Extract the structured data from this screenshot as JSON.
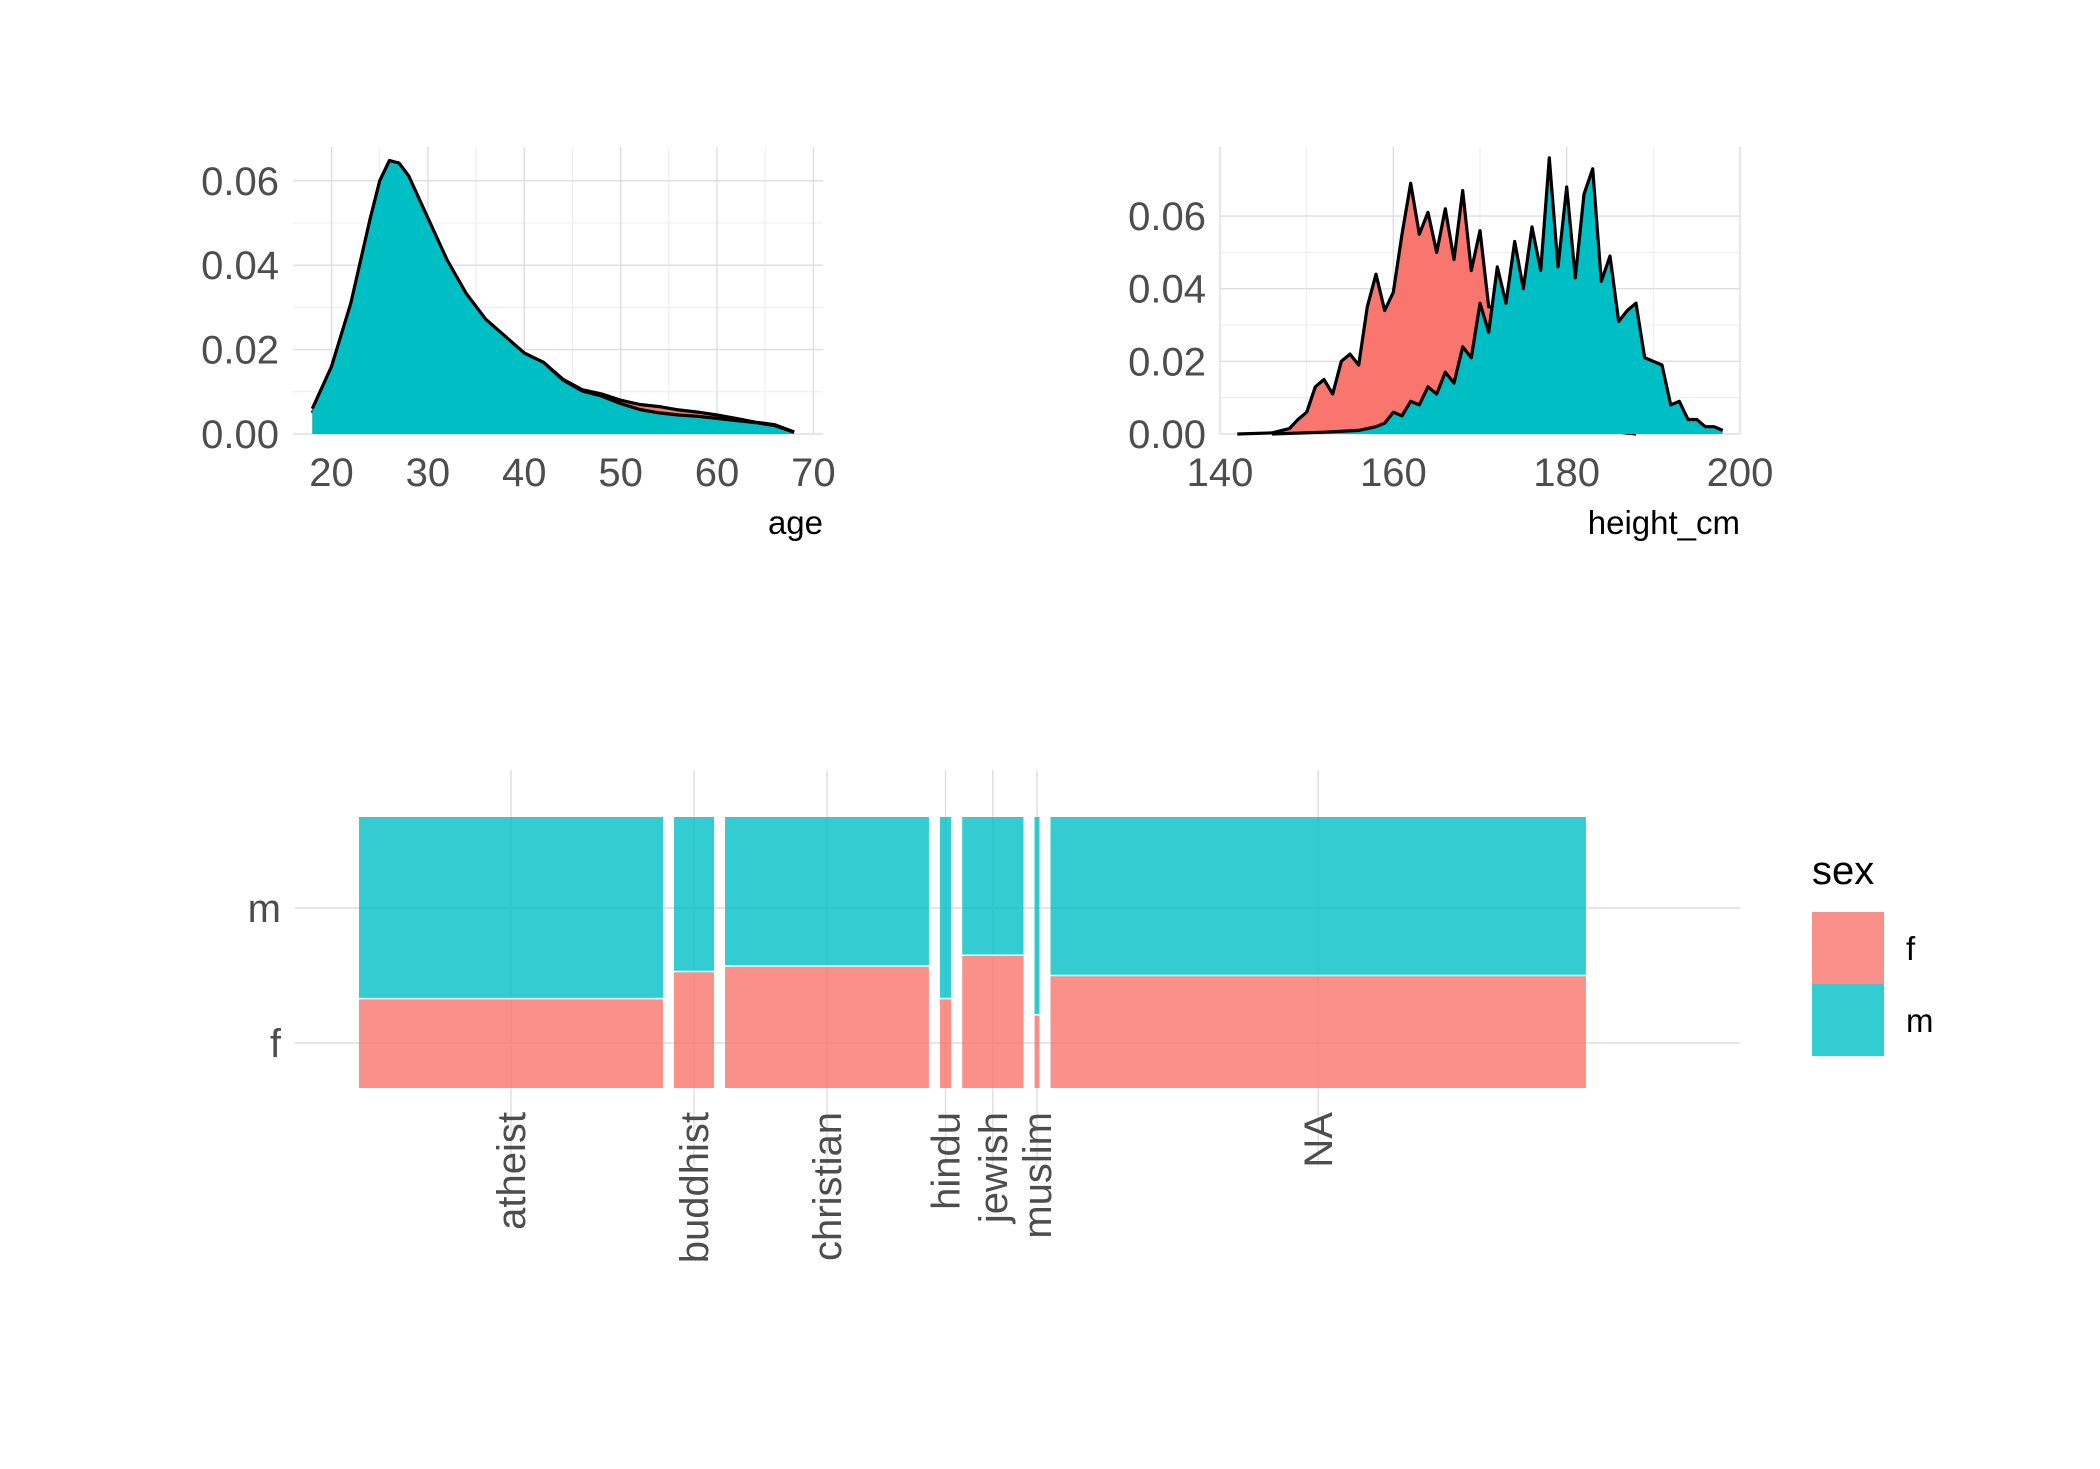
{
  "colors": {
    "f": "#F8766D",
    "m": "#00BFC4"
  },
  "chart_data": [
    {
      "type": "area",
      "chart": "density",
      "xlabel": "age",
      "xlim": [
        16,
        71
      ],
      "ylim": [
        0,
        0.068
      ],
      "x_ticks": [
        20,
        30,
        40,
        50,
        60,
        70
      ],
      "y_ticks": [
        0.0,
        0.02,
        0.04,
        0.06
      ],
      "x_tick_labels": [
        "20",
        "30",
        "40",
        "50",
        "60",
        "70"
      ],
      "y_tick_labels": [
        "0.00",
        "0.02",
        "0.04",
        "0.06"
      ],
      "series": [
        {
          "name": "f",
          "x": [
            18,
            20,
            22,
            24,
            25,
            26,
            27,
            28,
            30,
            32,
            34,
            36,
            38,
            40,
            42,
            44,
            46,
            48,
            50,
            52,
            54,
            56,
            58,
            60,
            62,
            64,
            66,
            68
          ],
          "values": [
            0.005,
            0.015,
            0.03,
            0.05,
            0.059,
            0.0645,
            0.064,
            0.061,
            0.051,
            0.041,
            0.033,
            0.027,
            0.023,
            0.019,
            0.017,
            0.013,
            0.0105,
            0.0095,
            0.008,
            0.007,
            0.0065,
            0.0057,
            0.0052,
            0.0045,
            0.0037,
            0.0028,
            0.0022,
            0.0005
          ]
        },
        {
          "name": "m",
          "x": [
            18,
            20,
            22,
            24,
            25,
            26,
            27,
            28,
            30,
            32,
            34,
            36,
            38,
            40,
            42,
            44,
            46,
            48,
            50,
            52,
            54,
            56,
            58,
            60,
            62,
            64,
            66,
            68
          ],
          "values": [
            0.006,
            0.016,
            0.031,
            0.051,
            0.06,
            0.0648,
            0.0642,
            0.0612,
            0.0512,
            0.0412,
            0.0332,
            0.0272,
            0.0232,
            0.0192,
            0.017,
            0.0128,
            0.0102,
            0.009,
            0.0072,
            0.0058,
            0.005,
            0.0045,
            0.0042,
            0.0037,
            0.0032,
            0.0027,
            0.002,
            0.0004
          ]
        }
      ]
    },
    {
      "type": "area",
      "chart": "density",
      "xlabel": "height_cm",
      "xlim": [
        140,
        200
      ],
      "ylim": [
        0,
        0.079
      ],
      "x_ticks": [
        140,
        160,
        180,
        200
      ],
      "y_ticks": [
        0.0,
        0.02,
        0.04,
        0.06
      ],
      "x_tick_labels": [
        "140",
        "160",
        "180",
        "200"
      ],
      "y_tick_labels": [
        "0.00",
        "0.02",
        "0.04",
        "0.06"
      ],
      "series": [
        {
          "name": "f",
          "x": [
            142,
            146,
            148,
            149,
            150,
            151,
            152,
            153,
            154,
            155,
            156,
            157,
            158,
            159,
            160,
            161,
            162,
            163,
            164,
            165,
            166,
            167,
            168,
            169,
            170,
            171,
            172,
            173,
            174,
            175,
            176,
            177,
            178,
            179,
            180,
            181,
            182,
            183,
            184,
            186,
            188
          ],
          "values": [
            0,
            0.0003,
            0.0015,
            0.004,
            0.006,
            0.013,
            0.015,
            0.011,
            0.02,
            0.022,
            0.019,
            0.035,
            0.044,
            0.034,
            0.039,
            0.055,
            0.069,
            0.055,
            0.061,
            0.05,
            0.062,
            0.048,
            0.067,
            0.045,
            0.056,
            0.035,
            0.035,
            0.022,
            0.022,
            0.012,
            0.011,
            0.007,
            0.006,
            0.004,
            0.003,
            0.002,
            0.0015,
            0.0015,
            0.001,
            0.0005,
            0
          ]
        },
        {
          "name": "m",
          "x": [
            146,
            152,
            156,
            158,
            159,
            160,
            161,
            162,
            163,
            164,
            165,
            166,
            167,
            168,
            169,
            170,
            171,
            172,
            173,
            174,
            175,
            176,
            177,
            178,
            179,
            180,
            181,
            182,
            183,
            184,
            185,
            186,
            187,
            188,
            189,
            190,
            191,
            192,
            193,
            194,
            195,
            196,
            197,
            198
          ],
          "values": [
            0,
            0.0005,
            0.001,
            0.002,
            0.003,
            0.006,
            0.005,
            0.009,
            0.008,
            0.013,
            0.011,
            0.017,
            0.014,
            0.024,
            0.021,
            0.036,
            0.028,
            0.046,
            0.036,
            0.053,
            0.04,
            0.057,
            0.045,
            0.076,
            0.046,
            0.068,
            0.043,
            0.066,
            0.073,
            0.042,
            0.049,
            0.031,
            0.034,
            0.036,
            0.021,
            0.02,
            0.019,
            0.008,
            0.009,
            0.004,
            0.004,
            0.002,
            0.002,
            0.001
          ]
        }
      ]
    },
    {
      "type": "mosaic",
      "legend_title": "sex",
      "legend_position": "right",
      "y_tick_labels": [
        "f",
        "m"
      ],
      "categories": [
        "atheist",
        "buddhist",
        "christian",
        "hindu",
        "jewish",
        "muslim",
        "NA"
      ],
      "category_share": [
        0.243,
        0.032,
        0.163,
        0.009,
        0.049,
        0.004,
        0.428
      ],
      "f_fraction": [
        0.33,
        0.43,
        0.45,
        0.33,
        0.49,
        0.27,
        0.415
      ],
      "series": [
        {
          "name": "f"
        },
        {
          "name": "m"
        }
      ]
    }
  ]
}
